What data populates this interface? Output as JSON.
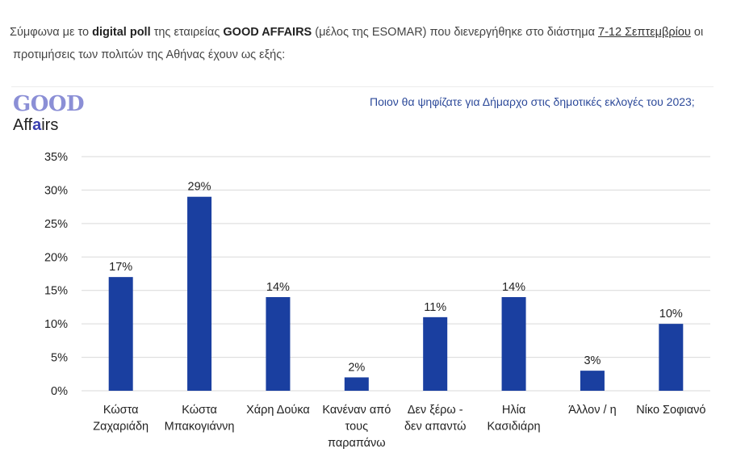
{
  "intro": {
    "p1": "Σύμφωνα με  το",
    "p2": "digital poll",
    "p3": "της εταιρείας",
    "p4": "GOOD AFFAIRS",
    "p5": "(μέλος της ESOMAR) που διενεργήθηκε στο διάστημα",
    "p6": "7-12 Σεπτεμβρίου",
    "p7": "οι",
    "p8": "προτιμήσεις των πολιτών της Αθήνας έχουν ως εξής:"
  },
  "logo": {
    "top": "GOOD",
    "bottom_pre": "Aff",
    "bottom_mark": "a",
    "bottom_post": "irs"
  },
  "colors": {
    "bar": "#1a3fa0",
    "grid": "#d9d9d9",
    "title": "#2d4a9a"
  },
  "chart_data": {
    "type": "bar",
    "title": "Ποιον θα ψηφίζατε για Δήμαρχο στις δημοτικές εκλογές του 2023;",
    "categories": [
      [
        "Κώστα",
        "Ζαχαριάδη"
      ],
      [
        "Κώστα",
        "Μπακογιάννη"
      ],
      [
        "Χάρη Δούκα"
      ],
      [
        "Κανέναν από",
        "τους",
        "παραπάνω"
      ],
      [
        "Δεν ξέρω -",
        "δεν απαντώ"
      ],
      [
        "Ηλία",
        "Κασιδιάρη"
      ],
      [
        "Άλλον / η"
      ],
      [
        "Νίκο Σοφιανό"
      ]
    ],
    "values": [
      17,
      29,
      14,
      2,
      11,
      14,
      3,
      10
    ],
    "value_labels": [
      "17%",
      "29%",
      "14%",
      "2%",
      "11%",
      "14%",
      "3%",
      "10%"
    ],
    "yticks": [
      "0%",
      "5%",
      "10%",
      "15%",
      "20%",
      "25%",
      "30%",
      "35%"
    ],
    "ylim": [
      0,
      35
    ],
    "grid": true
  }
}
